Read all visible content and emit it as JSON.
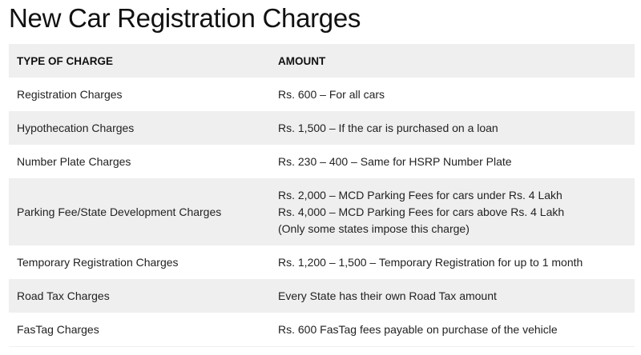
{
  "title": "New Car Registration Charges",
  "table": {
    "headers": [
      "TYPE OF CHARGE",
      "AMOUNT"
    ],
    "rows": [
      {
        "type": "Registration Charges",
        "amount": [
          "Rs. 600 – For all cars"
        ]
      },
      {
        "type": "Hypothecation Charges",
        "amount": [
          "Rs. 1,500 – If the car is purchased on a loan"
        ]
      },
      {
        "type": "Number Plate Charges",
        "amount": [
          "Rs. 230 – 400 – Same for HSRP Number Plate"
        ]
      },
      {
        "type": "Parking Fee/State Development Charges",
        "amount": [
          "Rs. 2,000 – MCD Parking Fees for cars under Rs. 4 Lakh",
          "Rs. 4,000 – MCD Parking Fees for cars above Rs. 4 Lakh",
          "(Only some states impose this charge)"
        ]
      },
      {
        "type": "Temporary Registration Charges",
        "amount": [
          "Rs. 1,200 – 1,500 – Temporary Registration for up to 1 month"
        ]
      },
      {
        "type": "Road Tax Charges",
        "amount": [
          "Every State has their own Road Tax amount"
        ]
      },
      {
        "type": "FasTag Charges",
        "amount": [
          "Rs. 600 FasTag fees payable on purchase of the vehicle"
        ]
      }
    ]
  }
}
